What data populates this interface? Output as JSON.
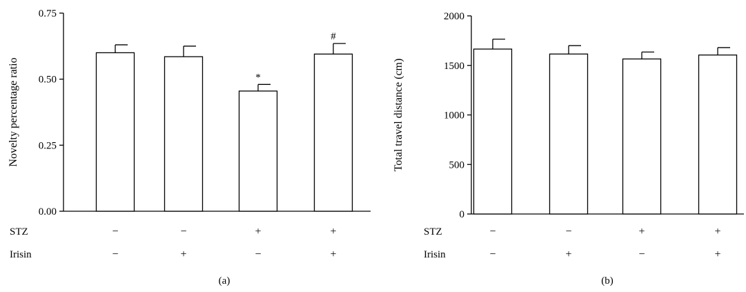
{
  "colors": {
    "bar_fill": "#ffffff",
    "stroke": "#000000"
  },
  "chart_data": [
    {
      "type": "bar",
      "panel_label": "(a)",
      "ylabel": "Novelty percentage ratio",
      "xlabel": "",
      "ylim": [
        0,
        0.75
      ],
      "yticks": [
        0.0,
        0.25,
        0.5,
        0.75
      ],
      "ytick_labels": [
        "0.00",
        "0.25",
        "0.50",
        "0.75"
      ],
      "categories": [
        "STZ−/Irisin−",
        "STZ−/Irisin+",
        "STZ+/Irisin−",
        "STZ+/Irisin+"
      ],
      "values": [
        0.6,
        0.585,
        0.455,
        0.595
      ],
      "errors": [
        0.03,
        0.04,
        0.025,
        0.04
      ],
      "annotations": [
        "",
        "",
        "*",
        "#"
      ],
      "treatment_rows": [
        {
          "label": "STZ",
          "signs": [
            "−",
            "−",
            "+",
            "+"
          ]
        },
        {
          "label": "Irisin",
          "signs": [
            "−",
            "+",
            "−",
            "+"
          ]
        }
      ]
    },
    {
      "type": "bar",
      "panel_label": "(b)",
      "ylabel": "Total travel distance (cm)",
      "xlabel": "",
      "ylim": [
        0,
        2000
      ],
      "yticks": [
        0,
        500,
        1000,
        1500,
        2000
      ],
      "ytick_labels": [
        "0",
        "500",
        "1000",
        "1500",
        "2000"
      ],
      "categories": [
        "STZ−/Irisin−",
        "STZ−/Irisin+",
        "STZ+/Irisin−",
        "STZ+/Irisin+"
      ],
      "values": [
        1665,
        1615,
        1565,
        1605
      ],
      "errors": [
        100,
        85,
        70,
        75
      ],
      "annotations": [
        "",
        "",
        "",
        ""
      ],
      "treatment_rows": [
        {
          "label": "STZ",
          "signs": [
            "−",
            "−",
            "+",
            "+"
          ]
        },
        {
          "label": "Irisin",
          "signs": [
            "−",
            "+",
            "−",
            "+"
          ]
        }
      ]
    }
  ]
}
